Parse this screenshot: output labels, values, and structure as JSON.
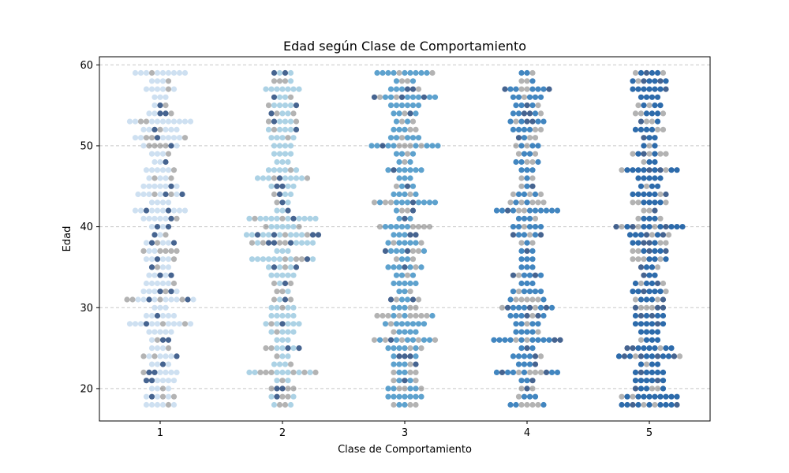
{
  "chart_data": {
    "type": "scatter",
    "subtype": "swarm",
    "title": "Edad según Clase de Comportamiento",
    "xlabel": "Clase de Comportamiento",
    "ylabel": "Edad",
    "categories": [
      "1",
      "2",
      "3",
      "4",
      "5"
    ],
    "ylim": [
      16,
      61
    ],
    "yticks": [
      "20",
      "30",
      "40",
      "50",
      "60"
    ],
    "grid": "horizontal-dashed",
    "age_range": [
      18,
      59
    ],
    "series": [
      {
        "category": "1",
        "point_color": "#c6dbef",
        "note_colors": "light blue with gray/dark overlap"
      },
      {
        "category": "2",
        "point_color": "#9ecae1",
        "note_colors": "light-medium blue with gray/dark overlap"
      },
      {
        "category": "3",
        "point_color": "#4292c6",
        "note_colors": "medium blue with gray/dark overlap"
      },
      {
        "category": "4",
        "point_color": "#2171b5",
        "note_colors": "blue with gray/dark overlap"
      },
      {
        "category": "5",
        "point_color": "#08519c",
        "note_colors": "dark blue with gray/dark overlap"
      }
    ],
    "colors": {
      "overlay_gray": "#808080",
      "overlay_dark": "#08306b",
      "grid": "#c8c8c8"
    }
  }
}
